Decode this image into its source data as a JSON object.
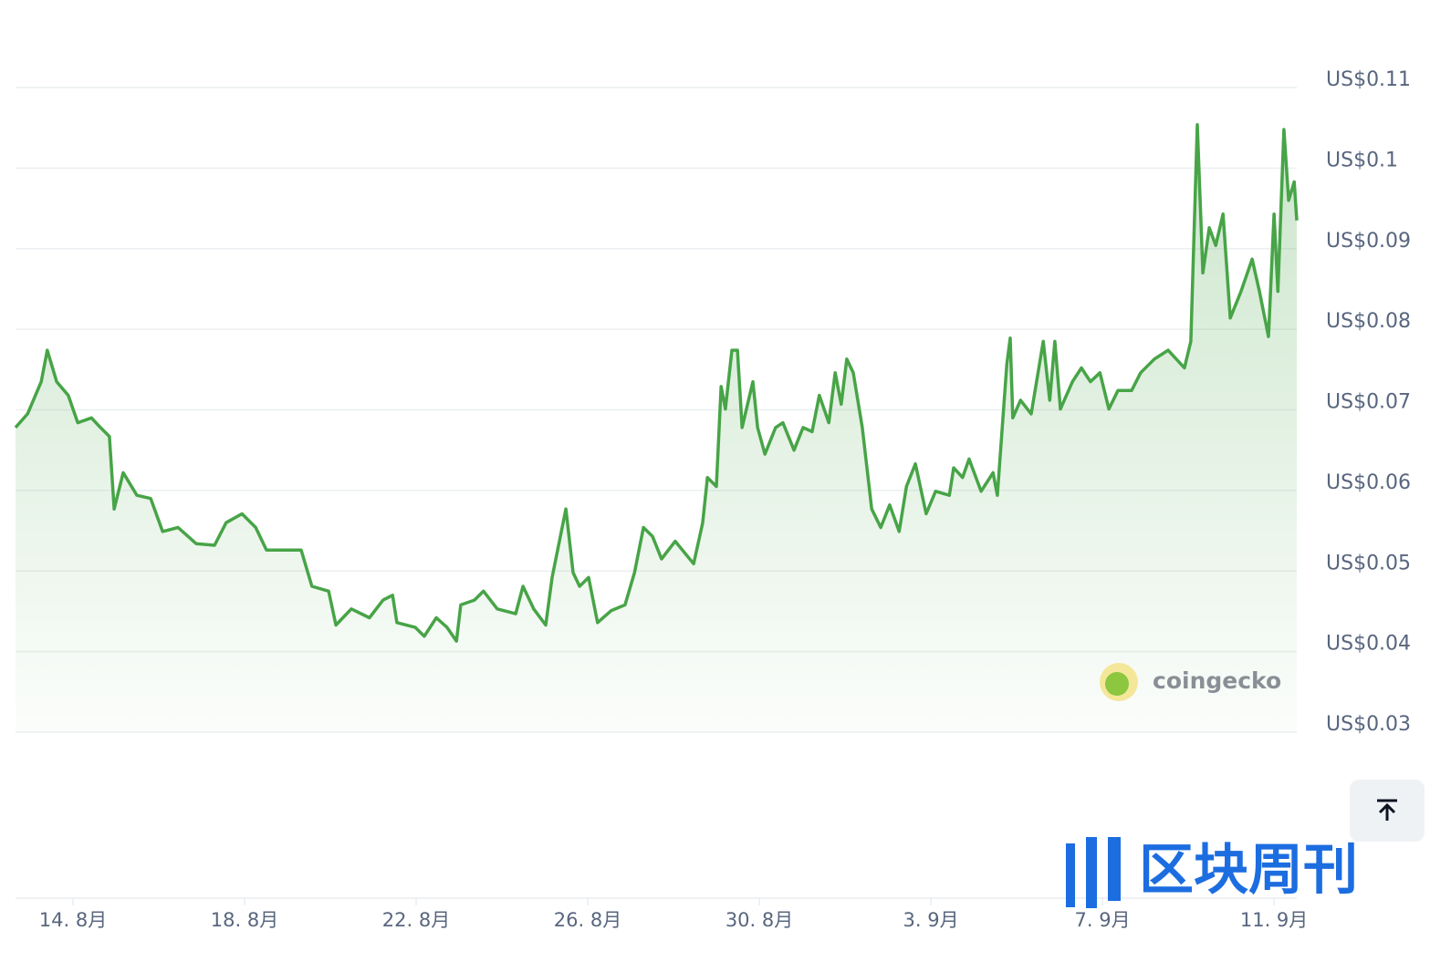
{
  "chart_data": {
    "type": "line",
    "watermark": "coingecko",
    "overlay_logo": "区块周刊",
    "x": [
      -1.34,
      -1.06,
      -0.74,
      -0.6,
      -0.38,
      -0.11,
      0.11,
      0.43,
      0.64,
      0.85,
      0.96,
      1.17,
      1.49,
      1.81,
      2.09,
      2.45,
      2.87,
      3.3,
      3.57,
      3.94,
      4.26,
      4.51,
      4.89,
      5.32,
      5.57,
      5.96,
      6.13,
      6.49,
      6.91,
      7.23,
      7.45,
      7.55,
      7.98,
      8.19,
      8.47,
      8.72,
      8.94,
      9.04,
      9.36,
      9.57,
      9.89,
      10.32,
      10.49,
      10.74,
      11.02,
      11.17,
      11.32,
      11.49,
      11.66,
      11.81,
      12.02,
      12.23,
      12.55,
      12.87,
      13.09,
      13.3,
      13.51,
      13.72,
      14.04,
      14.47,
      14.68,
      14.79,
      15.0,
      15.11,
      15.21,
      15.36,
      15.49,
      15.6,
      15.85,
      15.96,
      16.13,
      16.38,
      16.55,
      16.81,
      17.02,
      17.23,
      17.4,
      17.62,
      17.77,
      17.91,
      18.04,
      18.19,
      18.4,
      18.62,
      18.83,
      19.04,
      19.26,
      19.43,
      19.64,
      19.89,
      20.11,
      20.43,
      20.53,
      20.74,
      20.89,
      21.17,
      21.45,
      21.55,
      21.77,
      21.85,
      21.91,
      22.09,
      22.34,
      22.62,
      22.77,
      22.89,
      23.02,
      23.3,
      23.51,
      23.72,
      23.94,
      24.15,
      24.36,
      24.68,
      24.89,
      25.21,
      25.53,
      25.91,
      26.06,
      26.21,
      26.34,
      26.49,
      26.64,
      26.81,
      26.98,
      27.23,
      27.49,
      27.66,
      27.87,
      28.0,
      28.09,
      28.23,
      28.34,
      28.47,
      28.53
    ],
    "series": [
      {
        "color": "#47a447",
        "values": [
          0.0678,
          0.0695,
          0.0735,
          0.0774,
          0.0735,
          0.0718,
          0.0684,
          0.069,
          0.0678,
          0.0667,
          0.0577,
          0.0622,
          0.0594,
          0.059,
          0.0549,
          0.0554,
          0.0534,
          0.0532,
          0.056,
          0.0571,
          0.0554,
          0.0526,
          0.0526,
          0.0526,
          0.0481,
          0.0475,
          0.0433,
          0.0453,
          0.0442,
          0.0464,
          0.047,
          0.0436,
          0.043,
          0.0419,
          0.0442,
          0.043,
          0.0413,
          0.0458,
          0.0464,
          0.0475,
          0.0453,
          0.0447,
          0.0481,
          0.0453,
          0.0433,
          0.0492,
          0.0532,
          0.0577,
          0.0498,
          0.0481,
          0.0492,
          0.0436,
          0.0451,
          0.0458,
          0.0498,
          0.0554,
          0.0543,
          0.0515,
          0.0537,
          0.0509,
          0.056,
          0.0616,
          0.0605,
          0.0729,
          0.0701,
          0.0774,
          0.0774,
          0.0678,
          0.0735,
          0.0678,
          0.0645,
          0.0678,
          0.0684,
          0.065,
          0.0678,
          0.0673,
          0.0718,
          0.0684,
          0.0746,
          0.0707,
          0.0763,
          0.0746,
          0.0678,
          0.0577,
          0.0554,
          0.0582,
          0.0549,
          0.0605,
          0.0633,
          0.0571,
          0.0599,
          0.0594,
          0.0628,
          0.0616,
          0.0639,
          0.0599,
          0.0622,
          0.0594,
          0.0757,
          0.0789,
          0.069,
          0.0712,
          0.0695,
          0.0785,
          0.0712,
          0.0785,
          0.0701,
          0.0735,
          0.0752,
          0.0735,
          0.0746,
          0.0701,
          0.0724,
          0.0724,
          0.0746,
          0.0763,
          0.0774,
          0.0752,
          0.0785,
          0.1054,
          0.087,
          0.0926,
          0.0904,
          0.0943,
          0.0814,
          0.0847,
          0.0887,
          0.0847,
          0.0791,
          0.0943,
          0.0847,
          0.1048,
          0.096,
          0.0983,
          0.0935
        ]
      }
    ],
    "xlim": [
      -1.34,
      28.53
    ],
    "xticks": [
      {
        "value": 0,
        "label": "14. 8月"
      },
      {
        "value": 4,
        "label": "18. 8月"
      },
      {
        "value": 8,
        "label": "22. 8月"
      },
      {
        "value": 12,
        "label": "26. 8月"
      },
      {
        "value": 16,
        "label": "30. 8月"
      },
      {
        "value": 20,
        "label": "3. 9月"
      },
      {
        "value": 24,
        "label": "7. 9月"
      },
      {
        "value": 28,
        "label": "11. 9月"
      }
    ],
    "ylim": [
      0.03,
      0.11
    ],
    "yticks": [
      {
        "value": 0.11,
        "label": "US$0.11"
      },
      {
        "value": 0.1,
        "label": "US$0.1"
      },
      {
        "value": 0.09,
        "label": "US$0.09"
      },
      {
        "value": 0.08,
        "label": "US$0.08"
      },
      {
        "value": 0.07,
        "label": "US$0.07"
      },
      {
        "value": 0.06,
        "label": "US$0.06"
      },
      {
        "value": 0.05,
        "label": "US$0.05"
      },
      {
        "value": 0.04,
        "label": "US$0.04"
      },
      {
        "value": 0.03,
        "label": "US$0.03"
      }
    ],
    "grid": true
  }
}
